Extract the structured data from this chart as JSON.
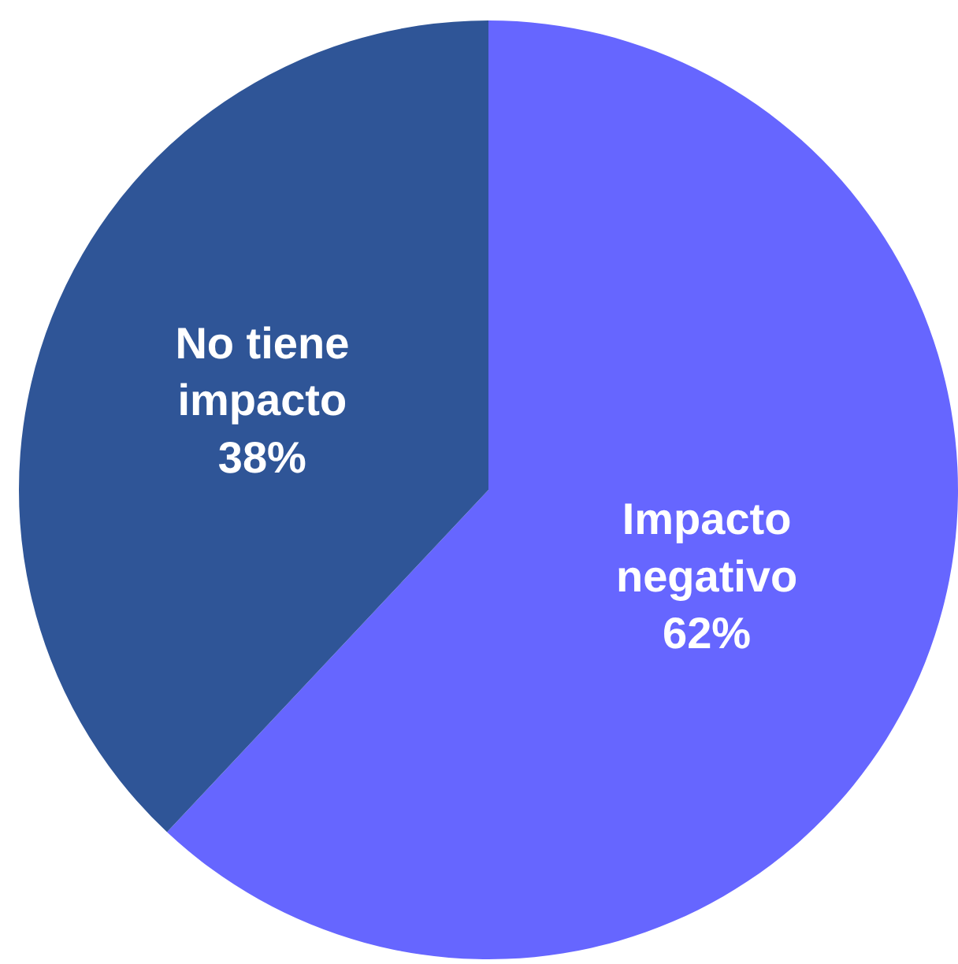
{
  "chart_data": {
    "type": "pie",
    "categories": [
      "Impacto negativo",
      "No tiene impacto"
    ],
    "values": [
      62,
      38
    ],
    "value_labels": [
      "62%",
      "38%"
    ],
    "colors": [
      "#6666ff",
      "#2f5597"
    ]
  }
}
